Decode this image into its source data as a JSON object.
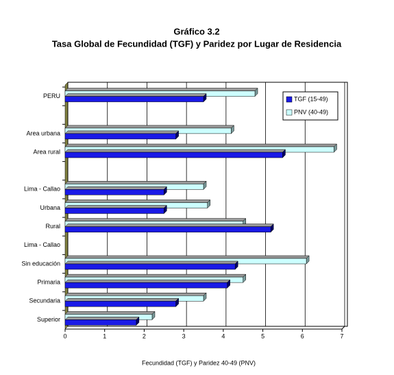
{
  "chart_data": {
    "type": "bar",
    "orientation": "horizontal",
    "title": "Gráfico 3.2",
    "subtitle": "Tasa Global de Fecundidad (TGF) y Paridez por Lugar de Residencia",
    "x_label": "Fecundidad (TGF) y Paridez 40-49 (PNV)",
    "categories": [
      "PERU",
      null,
      "Area urbana",
      "Area rural",
      null,
      "Lima - Callao",
      "Urbana",
      "Rural",
      "Lima - Callao",
      "Sin educación",
      "Primaria",
      "Secundaria",
      "Superior"
    ],
    "series": [
      {
        "name": "TGF (15-49)",
        "color": "#1a1ae6",
        "values": [
          3.5,
          null,
          2.8,
          5.5,
          null,
          2.5,
          2.5,
          5.2,
          null,
          4.3,
          4.1,
          2.8,
          1.8
        ]
      },
      {
        "name": "PNV (40-49)",
        "color": "#ccffff",
        "values": [
          4.8,
          null,
          4.2,
          6.8,
          null,
          3.5,
          3.6,
          4.5,
          null,
          6.1,
          4.5,
          3.5,
          2.2
        ]
      }
    ],
    "xlim": [
      0,
      7
    ],
    "xticks": [
      0,
      1,
      2,
      3,
      4,
      5,
      6,
      7
    ],
    "grid": true,
    "legend": "top-right"
  }
}
